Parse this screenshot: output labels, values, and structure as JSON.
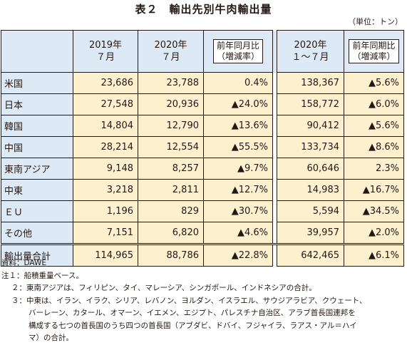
{
  "title": "表２　輸出先別牛肉輸出量",
  "unit": "（単位：トン）",
  "headers": {
    "y2019_line1": "2019年",
    "y2019_line2": "７月",
    "y2020_line1": "2020年",
    "y2020_line2": "７月",
    "yoy_month_line1": "前年同月比",
    "yoy_month_line2": "（増減率）",
    "ytd_line1": "2020年",
    "ytd_line2": "１～７月",
    "yoy_period_line1": "前年同期比",
    "yoy_period_line2": "（増減率）"
  },
  "rows": [
    {
      "name": "米国",
      "y2019": "23,686",
      "y2020": "23,788",
      "yoy": "0.4%",
      "ytd": "138,367",
      "yoy_period": "▲5.6%"
    },
    {
      "name": "日本",
      "y2019": "27,548",
      "y2020": "20,936",
      "yoy": "▲24.0%",
      "ytd": "158,772",
      "yoy_period": "▲6.0%"
    },
    {
      "name": "韓国",
      "y2019": "14,804",
      "y2020": "12,790",
      "yoy": "▲13.6%",
      "ytd": "90,412",
      "yoy_period": "▲5.6%"
    },
    {
      "name": "中国",
      "y2019": "28,214",
      "y2020": "12,554",
      "yoy": "▲55.5%",
      "ytd": "133,734",
      "yoy_period": "▲8.6%"
    },
    {
      "name": "東南アジア",
      "y2019": "9,148",
      "y2020": "8,257",
      "yoy": "▲9.7%",
      "ytd": "60,646",
      "yoy_period": "2.3%"
    },
    {
      "name": "中東",
      "y2019": "3,218",
      "y2020": "2,811",
      "yoy": "▲12.7%",
      "ytd": "14,983",
      "yoy_period": "▲16.7%"
    },
    {
      "name": "ＥＵ",
      "y2019": "1,196",
      "y2020": "829",
      "yoy": "▲30.7%",
      "ytd": "5,594",
      "yoy_period": "▲34.5%"
    },
    {
      "name": "その他",
      "y2019": "7,151",
      "y2020": "6,820",
      "yoy": "▲4.6%",
      "ytd": "39,957",
      "yoy_period": "▲2.0%"
    },
    {
      "name": "輸出量合計",
      "y2019": "114,965",
      "y2020": "88,786",
      "yoy": "▲22.8%",
      "ytd": "642,465",
      "yoy_period": "▲6.1%"
    }
  ],
  "notes": {
    "source": "資料：DAWE",
    "note1": "注１：船積重量ベース。",
    "note2": "２：東南アジアは、フィリピン、タイ、マレーシア、シンガポール、インドネシアの合計。",
    "note3_line1": "３：中東は、イラン、イラク、シリア、レバノン、ヨルダン、イスラエル、サウジアラビア、クウェート、",
    "note3_line2": "バーレーン、カタール、オマーン、イエメン、エジプト、パレスチナ自治区、アラブ首長国連邦を",
    "note3_line3": "構成する七つの首長国のうち四つの首長国（アブダビ、ドバイ、フジャイラ、ラアス・アル＝ハイ",
    "note3_line4": "マ）の合計。"
  }
}
